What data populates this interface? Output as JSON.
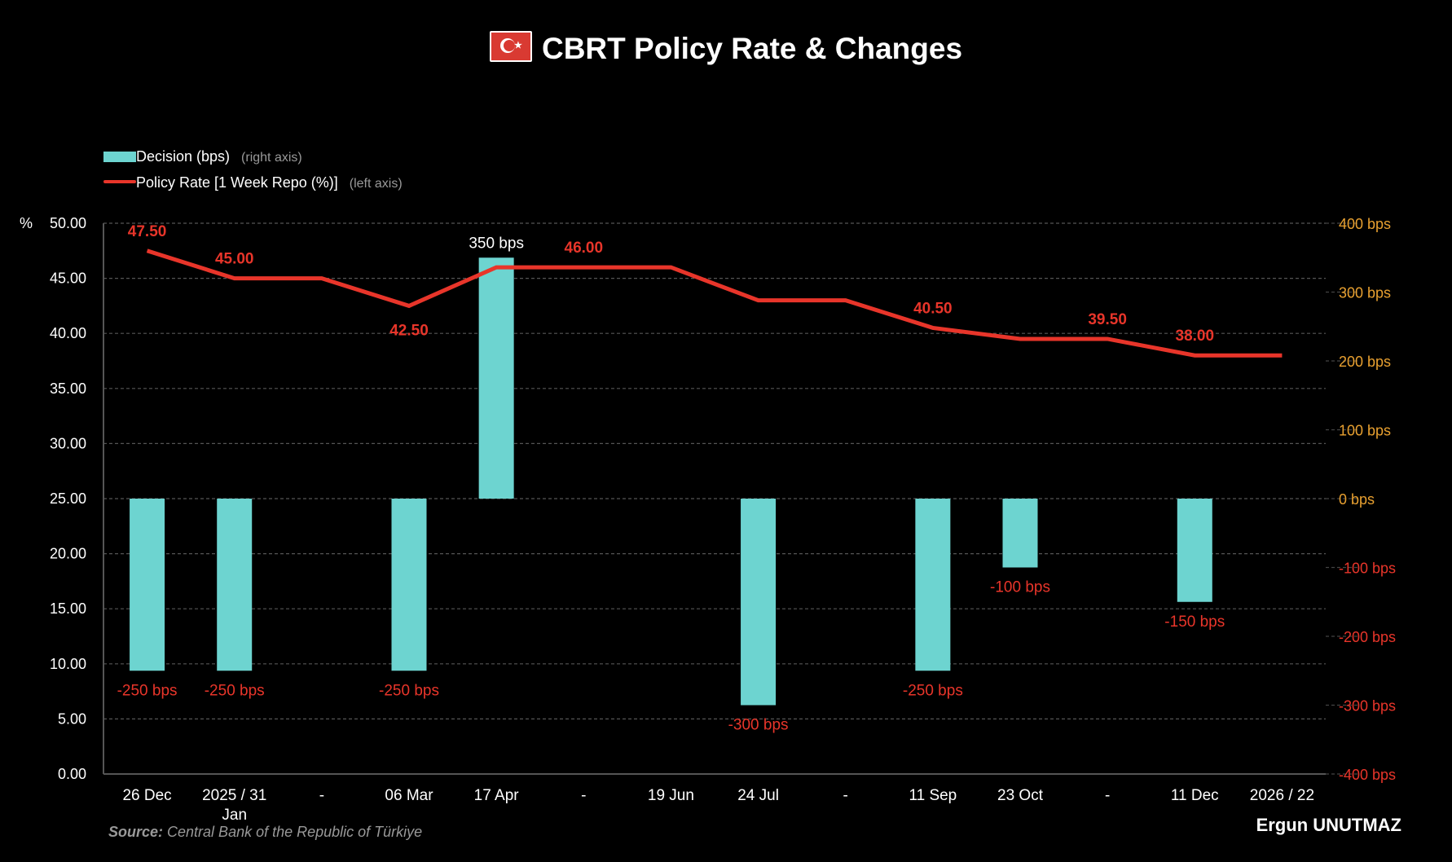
{
  "title": "CBRT Policy Rate & Changes",
  "flag_icon": "turkey-flag",
  "legend": [
    {
      "label": "Decision (bps)",
      "note": "(right axis)",
      "color": "#6dd4d0"
    },
    {
      "label": "Policy Rate [1 Week Repo (%)]",
      "note": "(left axis)",
      "color": "#e8352a"
    }
  ],
  "source_label": "Source:",
  "source_text": " Central Bank of the Republic of Türkiye",
  "author": "Ergun UNUTMAZ",
  "chart_data": {
    "type": "bar+line",
    "title": "CBRT Policy Rate & Changes",
    "categories": [
      "26 Dec",
      "2025 / 31 Jan",
      "-",
      "06 Mar",
      "17 Apr",
      "-",
      "19 Jun",
      "24 Jul",
      "-",
      "11 Sep",
      "23 Oct",
      "-",
      "11 Dec",
      "2026 / 22"
    ],
    "category_lines": [
      [
        "26 Dec"
      ],
      [
        "2025 / 31",
        "Jan"
      ],
      [
        "-"
      ],
      [
        "06 Mar"
      ],
      [
        "17 Apr"
      ],
      [
        "-"
      ],
      [
        "19 Jun"
      ],
      [
        "24 Jul"
      ],
      [
        "-"
      ],
      [
        "11 Sep"
      ],
      [
        "23 Oct"
      ],
      [
        "-"
      ],
      [
        "11 Dec"
      ],
      [
        "2026 / 22"
      ]
    ],
    "series": [
      {
        "name": "Decision (bps)",
        "axis": "right",
        "type": "bar",
        "color": "#6dd4d0",
        "values": [
          -250,
          -250,
          null,
          -250,
          350,
          null,
          null,
          -300,
          null,
          -250,
          -100,
          null,
          -150,
          null
        ],
        "labels": [
          "-250 bps",
          "-250 bps",
          null,
          "-250 bps",
          "350 bps",
          null,
          null,
          "-300 bps",
          null,
          "-250 bps",
          "-100 bps",
          null,
          "-150 bps",
          null
        ]
      },
      {
        "name": "Policy Rate [1 Week Repo (%)]",
        "axis": "left",
        "type": "line",
        "color": "#e8352a",
        "values": [
          47.5,
          45.0,
          45.0,
          42.5,
          46.0,
          46.0,
          46.0,
          43.0,
          43.0,
          40.5,
          39.5,
          39.5,
          38.0,
          38.0
        ],
        "labels": [
          "47.50",
          "45.00",
          null,
          "42.50",
          null,
          "46.00",
          null,
          null,
          null,
          "40.50",
          null,
          "39.50",
          "38.00",
          null
        ]
      }
    ],
    "left_axis": {
      "label": "%",
      "range": [
        0,
        50
      ],
      "ticks": [
        "0.00",
        "5.00",
        "10.00",
        "15.00",
        "20.00",
        "25.00",
        "30.00",
        "35.00",
        "40.00",
        "45.00",
        "50.00"
      ]
    },
    "right_axis": {
      "range": [
        -400,
        400
      ],
      "ticks": [
        "-400 bps",
        "-300 bps",
        "-200 bps",
        "-100 bps",
        "0 bps",
        "100 bps",
        "200 bps",
        "300 bps",
        "400 bps"
      ],
      "positive_color": "#e8a030",
      "negative_color": "#e8352a"
    },
    "grid": true,
    "legend_position": "top-left"
  }
}
